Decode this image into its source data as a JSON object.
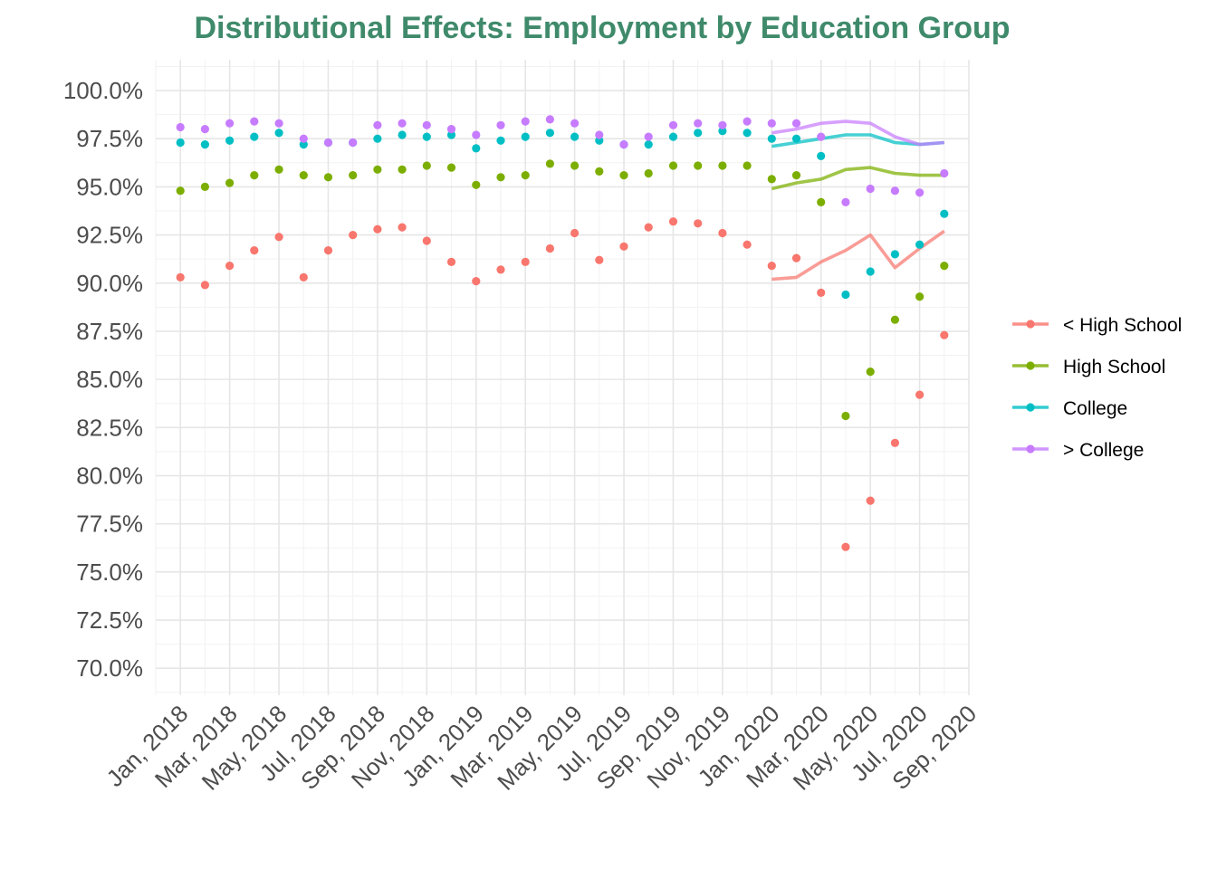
{
  "chart_data": {
    "type": "line",
    "title": "Distributional Effects: Employment by Education Group",
    "title_color": "#3f8a6b",
    "xlabel": "",
    "ylabel": "",
    "x": [
      "2018-01",
      "2018-02",
      "2018-03",
      "2018-04",
      "2018-05",
      "2018-06",
      "2018-07",
      "2018-08",
      "2018-09",
      "2018-10",
      "2018-11",
      "2018-12",
      "2019-01",
      "2019-02",
      "2019-03",
      "2019-04",
      "2019-05",
      "2019-06",
      "2019-07",
      "2019-08",
      "2019-09",
      "2019-10",
      "2019-11",
      "2019-12",
      "2020-01",
      "2020-02",
      "2020-03",
      "2020-04",
      "2020-05",
      "2020-06",
      "2020-07",
      "2020-08"
    ],
    "x_tick_labels": [
      "Jan, 2018",
      "Mar, 2018",
      "May, 2018",
      "Jul, 2018",
      "Sep, 2018",
      "Nov, 2018",
      "Jan, 2019",
      "Mar, 2019",
      "May, 2019",
      "Jul, 2019",
      "Sep, 2019",
      "Nov, 2019",
      "Jan, 2020",
      "Mar, 2020",
      "May, 2020",
      "Jul, 2020",
      "Sep, 2020"
    ],
    "x_tick_months": [
      "2018-01",
      "2018-03",
      "2018-05",
      "2018-07",
      "2018-09",
      "2018-11",
      "2019-01",
      "2019-03",
      "2019-05",
      "2019-07",
      "2019-09",
      "2019-11",
      "2020-01",
      "2020-03",
      "2020-05",
      "2020-07",
      "2020-09"
    ],
    "xlim": [
      "2017-12",
      "2020-09"
    ],
    "ylim": [
      68.6,
      101.6
    ],
    "y_ticks": [
      70.0,
      72.5,
      75.0,
      77.5,
      80.0,
      82.5,
      85.0,
      87.5,
      90.0,
      92.5,
      95.0,
      97.5,
      100.0
    ],
    "y_tick_labels": [
      "70.0%",
      "72.5%",
      "75.0%",
      "77.5%",
      "80.0%",
      "82.5%",
      "85.0%",
      "87.5%",
      "90.0%",
      "92.5%",
      "95.0%",
      "97.5%",
      "100.0%"
    ],
    "grid": true,
    "legend_position": "right",
    "series": [
      {
        "name": "< High School",
        "color": "#f8766d",
        "points": [
          90.3,
          89.9,
          90.9,
          91.7,
          92.4,
          90.3,
          91.7,
          92.5,
          92.8,
          92.9,
          92.2,
          91.1,
          90.1,
          90.7,
          91.1,
          91.8,
          92.6,
          91.2,
          91.9,
          92.9,
          93.2,
          93.1,
          92.6,
          92.0,
          90.9,
          91.3,
          89.5,
          76.3,
          78.7,
          81.7,
          84.2,
          87.3
        ],
        "line_x": [
          "2020-01",
          "2020-02",
          "2020-03",
          "2020-04",
          "2020-05",
          "2020-06",
          "2020-07",
          "2020-08"
        ],
        "line": [
          90.2,
          90.3,
          91.1,
          91.7,
          92.5,
          90.8,
          91.8,
          92.7
        ]
      },
      {
        "name": "High School",
        "color": "#7cae00",
        "points": [
          94.8,
          95.0,
          95.2,
          95.6,
          95.9,
          95.6,
          95.5,
          95.6,
          95.9,
          95.9,
          96.1,
          96.0,
          95.1,
          95.5,
          95.6,
          96.2,
          96.1,
          95.8,
          95.6,
          95.7,
          96.1,
          96.1,
          96.1,
          96.1,
          95.4,
          95.6,
          94.2,
          83.1,
          85.4,
          88.1,
          89.3,
          90.9
        ],
        "line_x": [
          "2020-01",
          "2020-02",
          "2020-03",
          "2020-04",
          "2020-05",
          "2020-06",
          "2020-07",
          "2020-08"
        ],
        "line": [
          94.9,
          95.2,
          95.4,
          95.9,
          96.0,
          95.7,
          95.6,
          95.6
        ]
      },
      {
        "name": "College",
        "color": "#00bfc4",
        "points": [
          97.3,
          97.2,
          97.4,
          97.6,
          97.8,
          97.2,
          97.3,
          97.3,
          97.5,
          97.7,
          97.6,
          97.7,
          97.0,
          97.4,
          97.6,
          97.8,
          97.6,
          97.4,
          97.2,
          97.2,
          97.6,
          97.8,
          97.9,
          97.8,
          97.5,
          97.5,
          96.6,
          89.4,
          90.6,
          91.5,
          92.0,
          93.6
        ],
        "line_x": [
          "2020-01",
          "2020-02",
          "2020-03",
          "2020-04",
          "2020-05",
          "2020-06",
          "2020-07",
          "2020-08"
        ],
        "line": [
          97.1,
          97.3,
          97.5,
          97.7,
          97.7,
          97.3,
          97.2,
          97.3
        ]
      },
      {
        "name": "> College",
        "color": "#c77cff",
        "points": [
          98.1,
          98.0,
          98.3,
          98.4,
          98.3,
          97.5,
          97.3,
          97.3,
          98.2,
          98.3,
          98.2,
          98.0,
          97.7,
          98.2,
          98.4,
          98.5,
          98.3,
          97.7,
          97.2,
          97.6,
          98.2,
          98.3,
          98.2,
          98.4,
          98.3,
          98.3,
          97.6,
          94.2,
          94.9,
          94.8,
          94.7,
          95.7
        ],
        "line_x": [
          "2020-01",
          "2020-02",
          "2020-03",
          "2020-04",
          "2020-05",
          "2020-06",
          "2020-07",
          "2020-08"
        ],
        "line": [
          97.8,
          98.0,
          98.3,
          98.4,
          98.3,
          97.6,
          97.2,
          97.3
        ]
      }
    ]
  }
}
